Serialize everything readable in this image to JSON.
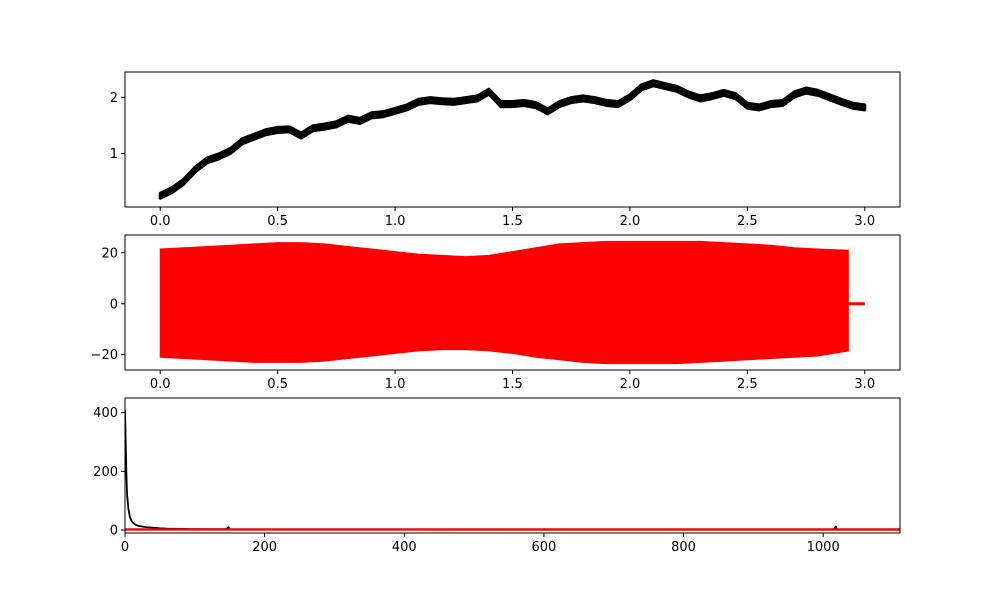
{
  "chart_data": [
    {
      "type": "line",
      "title": "",
      "xlabel": "",
      "ylabel": "",
      "xlim": [
        -0.15,
        3.15
      ],
      "ylim": [
        0.05,
        2.45
      ],
      "xticks": [
        0.0,
        0.5,
        1.0,
        1.5,
        2.0,
        2.5,
        3.0
      ],
      "xtick_labels": [
        "0.0",
        "0.5",
        "1.0",
        "1.5",
        "2.0",
        "2.5",
        "3.0"
      ],
      "yticks": [
        1,
        2
      ],
      "ytick_labels": [
        "1",
        "2"
      ],
      "grid": false,
      "series": [
        {
          "color": "#000000",
          "band_halfwidth": 0.045,
          "x": [
            0.0,
            0.05,
            0.1,
            0.15,
            0.2,
            0.25,
            0.3,
            0.35,
            0.4,
            0.45,
            0.5,
            0.55,
            0.6,
            0.65,
            0.7,
            0.75,
            0.8,
            0.85,
            0.9,
            0.95,
            1.0,
            1.05,
            1.1,
            1.15,
            1.2,
            1.25,
            1.3,
            1.35,
            1.4,
            1.45,
            1.5,
            1.55,
            1.6,
            1.65,
            1.7,
            1.75,
            1.8,
            1.85,
            1.9,
            1.95,
            2.0,
            2.05,
            2.1,
            2.15,
            2.2,
            2.25,
            2.3,
            2.35,
            2.4,
            2.45,
            2.5,
            2.55,
            2.6,
            2.65,
            2.7,
            2.75,
            2.8,
            2.85,
            2.9,
            2.95,
            3.0
          ],
          "y": [
            0.25,
            0.35,
            0.5,
            0.72,
            0.88,
            0.95,
            1.05,
            1.22,
            1.3,
            1.38,
            1.42,
            1.43,
            1.32,
            1.45,
            1.48,
            1.52,
            1.62,
            1.58,
            1.68,
            1.7,
            1.76,
            1.82,
            1.92,
            1.95,
            1.93,
            1.92,
            1.95,
            1.98,
            2.1,
            1.88,
            1.88,
            1.9,
            1.86,
            1.75,
            1.88,
            1.95,
            1.98,
            1.95,
            1.9,
            1.88,
            2.0,
            2.18,
            2.25,
            2.2,
            2.15,
            2.05,
            1.98,
            2.02,
            2.08,
            2.02,
            1.85,
            1.82,
            1.88,
            1.9,
            2.05,
            2.12,
            2.08,
            2.0,
            1.92,
            1.85,
            1.82
          ]
        }
      ]
    },
    {
      "type": "line",
      "title": "",
      "xlabel": "",
      "ylabel": "",
      "xlim": [
        -0.15,
        3.15
      ],
      "ylim": [
        -26,
        27
      ],
      "xticks": [
        0.0,
        0.5,
        1.0,
        1.5,
        2.0,
        2.5,
        3.0
      ],
      "xtick_labels": [
        "0.0",
        "0.5",
        "1.0",
        "1.5",
        "2.0",
        "2.5",
        "3.0"
      ],
      "yticks": [
        -20,
        0,
        20
      ],
      "ytick_labels": [
        "−20",
        "0",
        "20"
      ],
      "grid": false,
      "series": [
        {
          "color": "#ff0000",
          "signal_end": 2.93,
          "tail_end": 3.0,
          "x": [
            0.0,
            0.1,
            0.2,
            0.3,
            0.4,
            0.5,
            0.6,
            0.7,
            0.8,
            0.9,
            1.0,
            1.1,
            1.2,
            1.3,
            1.4,
            1.5,
            1.6,
            1.7,
            1.8,
            1.9,
            2.0,
            2.1,
            2.2,
            2.3,
            2.4,
            2.5,
            2.6,
            2.7,
            2.8,
            2.93
          ],
          "upper": [
            21.5,
            22,
            22.5,
            23,
            23.5,
            24,
            24,
            23.5,
            22.5,
            21.5,
            20.5,
            19.5,
            19,
            18.5,
            19,
            20.5,
            22,
            23.5,
            24,
            24.5,
            24.5,
            24.5,
            24.5,
            24.5,
            24,
            23.5,
            23,
            22,
            21.5,
            21
          ],
          "lower": [
            -21,
            -21.5,
            -22,
            -22.5,
            -23,
            -23,
            -23,
            -22.5,
            -21.5,
            -20.5,
            -19.5,
            -18.5,
            -18,
            -18,
            -18.5,
            -19.5,
            -21,
            -22,
            -23,
            -23.5,
            -23.5,
            -23.5,
            -23.5,
            -23,
            -22.5,
            -22,
            -21.5,
            -21,
            -20.5,
            -18.5
          ]
        }
      ]
    },
    {
      "type": "line",
      "title": "",
      "xlabel": "",
      "ylabel": "",
      "xlim": [
        0,
        1110
      ],
      "ylim": [
        -10,
        450
      ],
      "xticks": [
        0,
        200,
        400,
        600,
        800,
        1000
      ],
      "xtick_labels": [
        "0",
        "200",
        "400",
        "600",
        "800",
        "1000"
      ],
      "yticks": [
        0,
        200,
        400
      ],
      "ytick_labels": [
        "0",
        "200",
        "400"
      ],
      "grid": false,
      "series": [
        {
          "color": "#000000",
          "x": [
            0,
            1,
            2,
            3,
            5,
            7,
            10,
            15,
            20,
            30,
            40,
            50,
            60,
            80,
            100,
            120,
            145,
            148,
            150,
            155,
            200,
            300,
            400,
            500,
            600,
            700,
            800,
            900,
            1000,
            1015,
            1018,
            1020,
            1025,
            1110
          ],
          "y": [
            410,
            300,
            190,
            120,
            70,
            45,
            28,
            18,
            14,
            10,
            8,
            6,
            5,
            4,
            3,
            3,
            3,
            10,
            3,
            2,
            2,
            1.5,
            1.5,
            1,
            1,
            1,
            1,
            1,
            1,
            1,
            12,
            1,
            1,
            1
          ]
        },
        {
          "color": "#ff0000",
          "x": [
            0,
            1110
          ],
          "y": [
            2,
            2
          ]
        }
      ]
    }
  ]
}
